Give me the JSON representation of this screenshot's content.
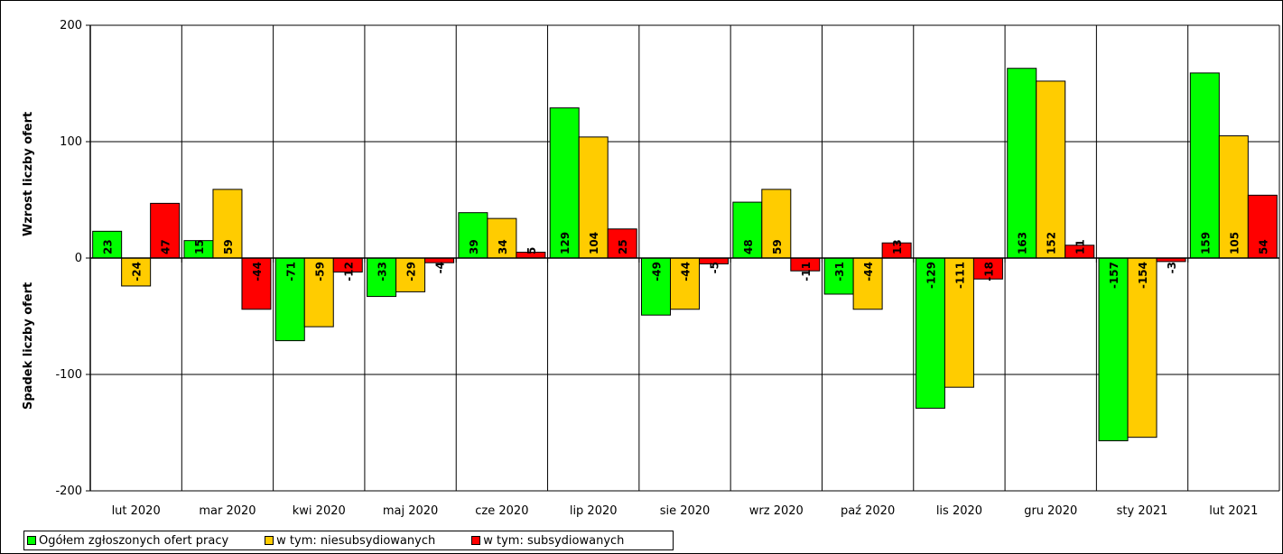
{
  "chart_data": {
    "type": "bar",
    "categories": [
      "lut 2020",
      "mar 2020",
      "kwi 2020",
      "maj 2020",
      "cze 2020",
      "lip 2020",
      "sie 2020",
      "wrz 2020",
      "paź 2020",
      "lis 2020",
      "gru 2020",
      "sty 2021",
      "lut 2021"
    ],
    "series": [
      {
        "name": "Ogółem zgłoszonych ofert pracy",
        "color": "#00ff00",
        "values": [
          23,
          15,
          -71,
          -33,
          39,
          129,
          -49,
          48,
          -31,
          -129,
          163,
          -157,
          159
        ]
      },
      {
        "name": "w tym: niesubsydiowanych",
        "color": "#ffcc00",
        "values": [
          -24,
          59,
          -59,
          -29,
          34,
          104,
          -44,
          59,
          -44,
          -111,
          152,
          -154,
          105
        ]
      },
      {
        "name": "w tym: subsydiowanych",
        "color": "#ff0000",
        "values": [
          47,
          -44,
          -12,
          -4,
          5,
          25,
          -5,
          -11,
          13,
          -18,
          11,
          -3,
          54
        ]
      }
    ],
    "ylim": [
      -200,
      200
    ],
    "yticks": [
      "200",
      "100",
      "0",
      "-100",
      "-200"
    ],
    "ylabel_positive": "Wzrost liczby ofert",
    "ylabel_negative": "Spadek liczby ofert",
    "grid": true,
    "legend_position": "bottom-left"
  }
}
